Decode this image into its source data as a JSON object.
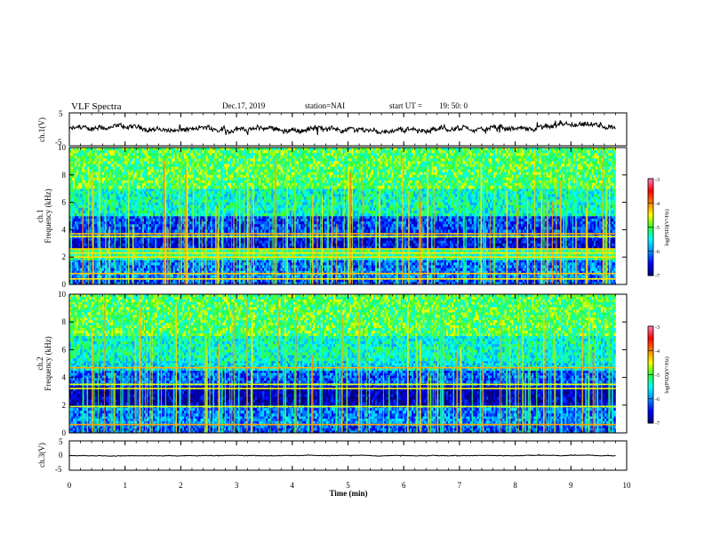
{
  "header": {
    "title": "VLF Spectra",
    "date": "Dec.17, 2019",
    "station": "station=NAI",
    "start_label": "start  UT =",
    "start_time": "19: 50: 0"
  },
  "chart_data": [
    {
      "type": "line",
      "name": "ch1-waveform",
      "ylabel": "ch.1(V)",
      "ylim": [
        -5,
        5
      ],
      "ytick_labels": [
        "5",
        "-5"
      ],
      "xlim": [
        0,
        10
      ],
      "trace_x_range": [
        0,
        9.8
      ],
      "trace_mean": 0,
      "trace_amplitude": 1.2
    },
    {
      "type": "heatmap",
      "name": "ch1-spectrogram",
      "ylabel": "ch.1",
      "ylabel2": "Frequency  (kHz)",
      "ylim": [
        0,
        10
      ],
      "yticks": [
        0,
        2,
        4,
        6,
        8,
        10
      ],
      "ytick_labels": [
        "0",
        "2",
        "4",
        "6",
        "8",
        "10"
      ],
      "xlim": [
        0,
        10
      ],
      "data_x_range": [
        0,
        9.8
      ],
      "bands": [
        {
          "f": [
            0,
            0.5
          ],
          "level": -6.3
        },
        {
          "f": [
            0.5,
            1.0
          ],
          "level": -6.0
        },
        {
          "f": [
            1.0,
            1.8
          ],
          "level": -6.1
        },
        {
          "f": [
            1.8,
            2.6
          ],
          "level": -5.2
        },
        {
          "f": [
            2.6,
            3.4
          ],
          "level": -6.6
        },
        {
          "f": [
            3.4,
            3.8
          ],
          "level": -6.3
        },
        {
          "f": [
            3.8,
            5.0
          ],
          "level": -6.3
        },
        {
          "f": [
            5.0,
            7.0
          ],
          "level": -5.4
        },
        {
          "f": [
            7.0,
            10.0
          ],
          "level": -5.0
        }
      ],
      "lines_khz": [
        0.4,
        0.8,
        2.0,
        2.3,
        2.6,
        3.5,
        3.7
      ],
      "colorbar": {
        "label": "log(PSD)(V²/Hz)",
        "range": [
          -7,
          -3
        ],
        "tick_labels": [
          "-3",
          "-4",
          "-5",
          "-6",
          "-7"
        ]
      }
    },
    {
      "type": "heatmap",
      "name": "ch2-spectrogram",
      "ylabel": "ch.2",
      "ylabel2": "Frequency  (kHz)",
      "ylim": [
        0,
        10
      ],
      "yticks": [
        0,
        2,
        4,
        6,
        8,
        10
      ],
      "ytick_labels": [
        "0",
        "2",
        "4",
        "6",
        "8",
        "10"
      ],
      "xlim": [
        0,
        10
      ],
      "data_x_range": [
        0,
        9.8
      ],
      "bands": [
        {
          "f": [
            0,
            0.5
          ],
          "level": -6.3
        },
        {
          "f": [
            0.5,
            1.2
          ],
          "level": -6.0
        },
        {
          "f": [
            1.2,
            2.0
          ],
          "level": -6.1
        },
        {
          "f": [
            2.0,
            2.8
          ],
          "level": -6.8
        },
        {
          "f": [
            2.8,
            3.4
          ],
          "level": -6.8
        },
        {
          "f": [
            3.4,
            4.5
          ],
          "level": -6.2
        },
        {
          "f": [
            4.5,
            5.2
          ],
          "level": -5.6
        },
        {
          "f": [
            5.2,
            7.0
          ],
          "level": -5.4
        },
        {
          "f": [
            7.0,
            10.0
          ],
          "level": -5.0
        }
      ],
      "lines_khz": [
        0.6,
        1.9,
        3.2,
        3.5,
        4.7
      ],
      "colorbar": {
        "label": "log(PSD)(V²/Hz)",
        "range": [
          -7,
          -3
        ],
        "tick_labels": [
          "-3",
          "-4",
          "-5",
          "-6",
          "-7"
        ]
      }
    },
    {
      "type": "line",
      "name": "ch3-waveform",
      "ylabel": "ch.3(V)",
      "ylim": [
        -5,
        5
      ],
      "ytick_labels": [
        "5",
        "0",
        "-5"
      ],
      "xlim": [
        0,
        10
      ],
      "trace_x_range": [
        0,
        9.8
      ],
      "trace_mean": 0,
      "trace_amplitude": 0.15
    }
  ],
  "xaxis": {
    "label": "Time  (min)",
    "ticks": [
      0,
      1,
      2,
      3,
      4,
      5,
      6,
      7,
      8,
      9,
      10
    ],
    "tick_labels": [
      "0",
      "1",
      "2",
      "3",
      "4",
      "5",
      "6",
      "7",
      "8",
      "9",
      "10"
    ]
  },
  "colors": {
    "colormap": [
      "#00007a",
      "#0000ff",
      "#0090ff",
      "#00ffff",
      "#30ff30",
      "#ffff00",
      "#ff8000",
      "#ff0000",
      "#ff80c0",
      "#ffffff"
    ],
    "trace": "#000000"
  }
}
